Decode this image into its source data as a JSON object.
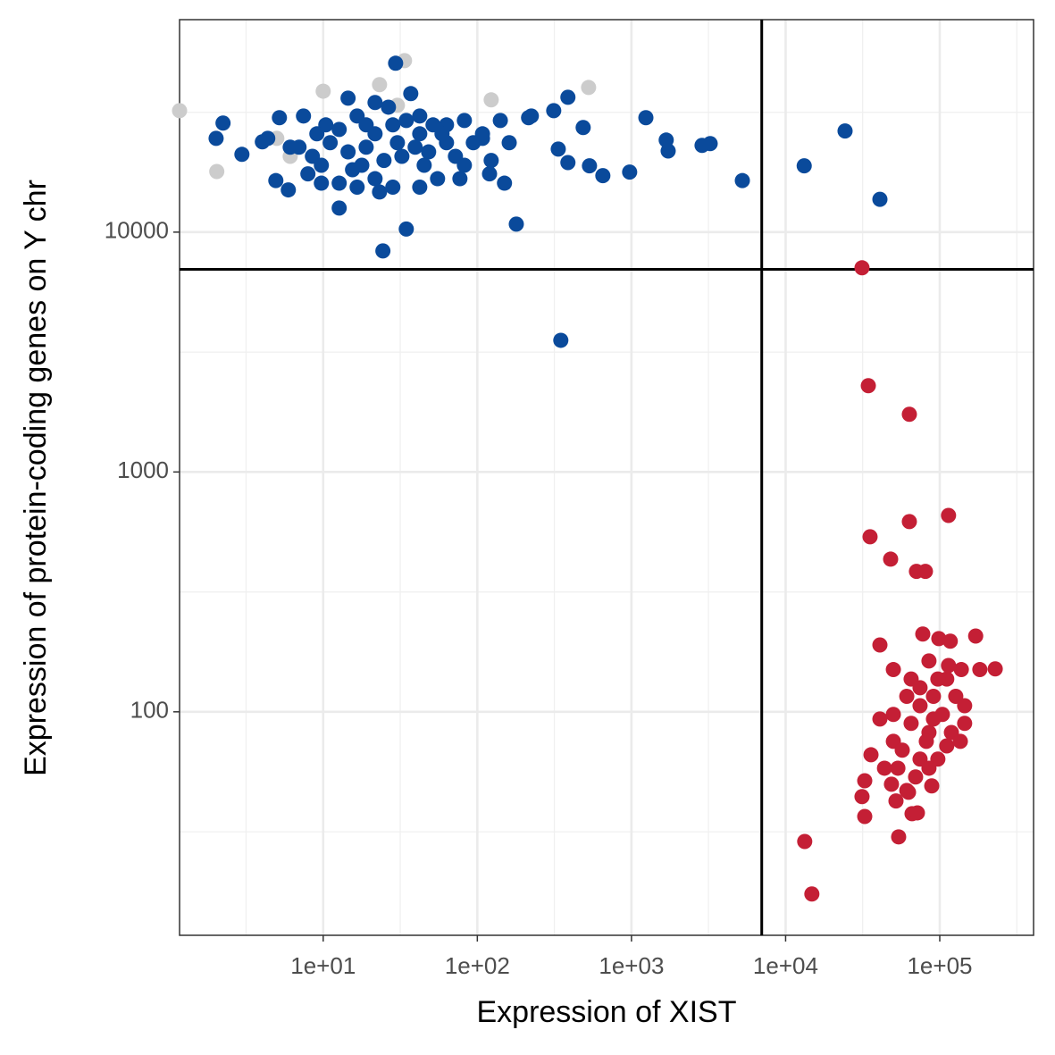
{
  "chart_data": {
    "type": "scatter",
    "x_label": "Expression of XIST",
    "y_label": "Expression of protein-coding genes on Y chr",
    "xlog": true,
    "ylog": true,
    "xlim": [
      1.17,
      406000
    ],
    "ylim": [
      11.7,
      76900
    ],
    "xticks": [
      {
        "value": 10,
        "label": "1e+01"
      },
      {
        "value": 100,
        "label": "1e+02"
      },
      {
        "value": 1000,
        "label": "1e+03"
      },
      {
        "value": 10000,
        "label": "1e+04"
      },
      {
        "value": 100000,
        "label": "1e+05"
      }
    ],
    "yticks": [
      100,
      1000,
      10000
    ],
    "xminor": [
      3.16,
      31.6,
      316,
      3160,
      31600,
      316000
    ],
    "yminor": [
      31.6,
      316,
      3160,
      31600
    ],
    "grid": true,
    "vline": 7000,
    "hline": 7000,
    "series": [
      {
        "color": "#cccccc",
        "x": [
          1.17,
          2.04,
          10,
          23.2,
          33.7,
          123,
          527,
          30.3,
          5.0,
          6.11
        ],
        "values": [
          32100,
          17900,
          38700,
          41200,
          51900,
          35600,
          40100,
          33800,
          24600,
          20700
        ]
      },
      {
        "color": "#0a4a9b",
        "x": [
          29.5,
          14.5,
          37,
          387,
          1240,
          486,
          24300,
          1680,
          1730,
          2870,
          3240,
          13200,
          40900,
          5240,
          973,
          652,
          534,
          387,
          335,
          313,
          215,
          179,
          348,
          34.6,
          24.4,
          12.7,
          5.94,
          4.93,
          2.24,
          2.02,
          2.97,
          4.03,
          5.2,
          7.45,
          10.4,
          16.6,
          21.7,
          42.3,
          63.1,
          82.4,
          108,
          141,
          161,
          224,
          150,
          120,
          77.1,
          55.2,
          42.3,
          28.3,
          21.7,
          16.6,
          12.7,
          9.73,
          7.96,
          6.97,
          8.51,
          11.1,
          14.5,
          19,
          24.8,
          32.4,
          48.3,
          72.1,
          94.2,
          123,
          63.1,
          42.3,
          28.3,
          19,
          12.7,
          9.1,
          6.11,
          4.37,
          21.7,
          26.5,
          34.6,
          45.2,
          59,
          82.4,
          108,
          9.73,
          15.5,
          23.2,
          30.3,
          39.5,
          51.6,
          17.8
        ],
        "values": [
          50600,
          36200,
          37800,
          36500,
          30000,
          27300,
          26400,
          24200,
          21800,
          23000,
          23400,
          18900,
          13700,
          16400,
          17800,
          17200,
          18900,
          19500,
          22200,
          32100,
          30000,
          10800,
          3540,
          10300,
          8350,
          12600,
          15000,
          16400,
          28500,
          24600,
          21100,
          23800,
          30000,
          30500,
          28000,
          30500,
          25700,
          30500,
          28000,
          29200,
          24600,
          29200,
          23600,
          30500,
          16000,
          17500,
          16700,
          16700,
          15400,
          15400,
          16700,
          15400,
          16000,
          16000,
          17500,
          22600,
          20700,
          23600,
          21600,
          22600,
          19900,
          20700,
          21600,
          20700,
          23600,
          19900,
          23600,
          25700,
          28000,
          28000,
          26800,
          25700,
          22600,
          24600,
          34700,
          33200,
          29200,
          19000,
          25700,
          19000,
          25700,
          19000,
          18200,
          14700,
          23600,
          22600,
          28000,
          19000
        ]
      },
      {
        "color": "#c41f35",
        "x": [
          31300,
          34400,
          63500,
          114000,
          63500,
          35300,
          48000,
          70600,
          80700,
          40900,
          77600,
          98600,
          117000,
          171000,
          229000,
          182000,
          138000,
          50000,
          85100,
          65200,
          111000,
          91000,
          127000,
          74500,
          50000,
          40900,
          145000,
          145000,
          104000,
          65200,
          85100,
          119000,
          50000,
          136000,
          57100,
          35800,
          74500,
          97200,
          111000,
          53500,
          69700,
          85100,
          43800,
          32600,
          61100,
          48600,
          88700,
          31300,
          52000,
          62700,
          32600,
          66100,
          71600,
          54100,
          13300,
          14800,
          74500,
          97200,
          61100,
          114000,
          81800,
          91000
        ],
        "values": [
          7100,
          2290,
          1740,
          659,
          621,
          537,
          433,
          385,
          385,
          190,
          211,
          202,
          197,
          207,
          151,
          150,
          150,
          150,
          163,
          137,
          137,
          116,
          116,
          106,
          97.5,
          93.3,
          106,
          89.5,
          97.5,
          89.5,
          82,
          82,
          75.3,
          75.3,
          69.2,
          66.2,
          63.5,
          63.5,
          72.1,
          58.2,
          53.5,
          58.2,
          58.2,
          51.6,
          47,
          49.9,
          49.1,
          44.3,
          42.5,
          46.2,
          36.6,
          37.6,
          37.9,
          30.1,
          28.8,
          17.4,
          126,
          137,
          116,
          156,
          75.3,
          93.3
        ]
      }
    ]
  }
}
